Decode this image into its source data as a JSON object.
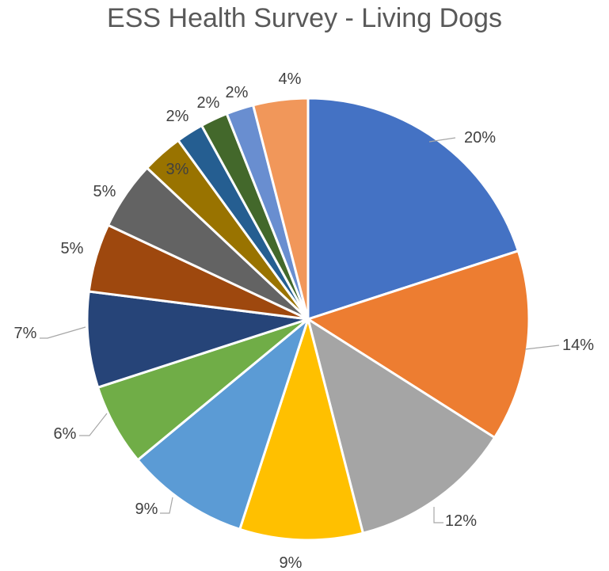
{
  "chart_data": {
    "type": "pie",
    "title": "ESS Health Survey - Living Dogs",
    "values": [
      20,
      14,
      12,
      9,
      9,
      6,
      7,
      5,
      5,
      3,
      2,
      2,
      2,
      4
    ],
    "labels": [
      "20%",
      "14%",
      "12%",
      "9%",
      "9%",
      "6%",
      "7%",
      "5%",
      "5%",
      "3%",
      "2%",
      "2%",
      "2%",
      "4%"
    ],
    "colors": [
      "#4472C4",
      "#ED7D31",
      "#A5A5A5",
      "#FFC000",
      "#5B9BD5",
      "#70AD47",
      "#264478",
      "#9E480E",
      "#636363",
      "#997300",
      "#255E91",
      "#43682B",
      "#698ED0",
      "#F1975A"
    ],
    "legend": "none"
  }
}
